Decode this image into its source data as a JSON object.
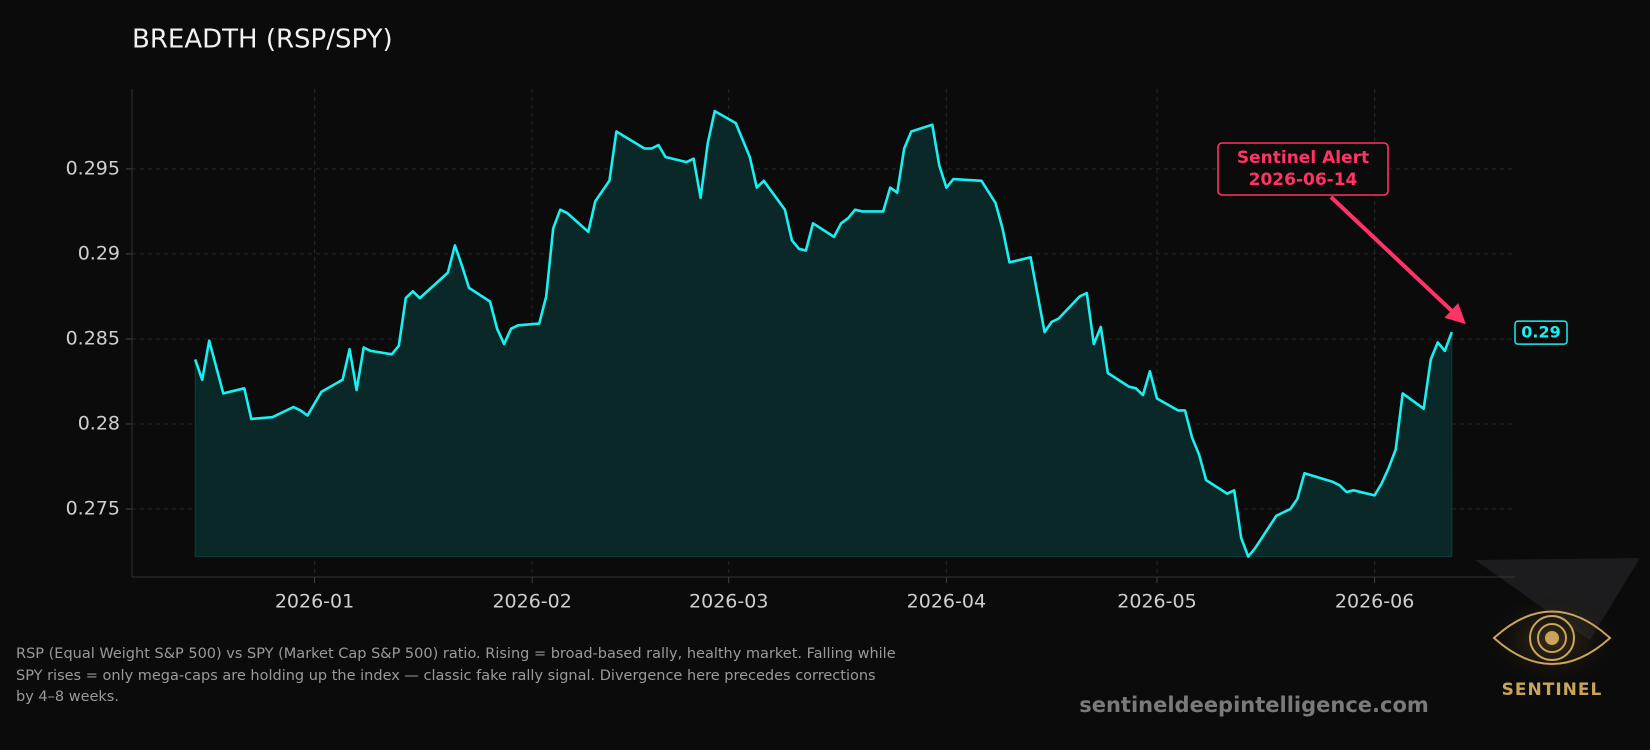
{
  "chart_data": {
    "type": "area-line",
    "title": "BREADTH (RSP/SPY)",
    "x": [
      "2025-12-15",
      "2025-12-16",
      "2025-12-17",
      "2025-12-19",
      "2025-12-22",
      "2025-12-23",
      "2025-12-26",
      "2025-12-29",
      "2025-12-30",
      "2025-12-31",
      "2026-01-02",
      "2026-01-05",
      "2026-01-06",
      "2026-01-07",
      "2026-01-08",
      "2026-01-09",
      "2026-01-12",
      "2026-01-13",
      "2026-01-14",
      "2026-01-15",
      "2026-01-16",
      "2026-01-20",
      "2026-01-21",
      "2026-01-22",
      "2026-01-23",
      "2026-01-26",
      "2026-01-27",
      "2026-01-28",
      "2026-01-29",
      "2026-01-30",
      "2026-02-02",
      "2026-02-03",
      "2026-02-04",
      "2026-02-05",
      "2026-02-06",
      "2026-02-09",
      "2026-02-10",
      "2026-02-12",
      "2026-02-13",
      "2026-02-17",
      "2026-02-18",
      "2026-02-19",
      "2026-02-20",
      "2026-02-23",
      "2026-02-24",
      "2026-02-25",
      "2026-02-26",
      "2026-02-27",
      "2026-03-02",
      "2026-03-04",
      "2026-03-05",
      "2026-03-06",
      "2026-03-09",
      "2026-03-10",
      "2026-03-11",
      "2026-03-12",
      "2026-03-13",
      "2026-03-16",
      "2026-03-17",
      "2026-03-18",
      "2026-03-19",
      "2026-03-20",
      "2026-03-23",
      "2026-03-24",
      "2026-03-25",
      "2026-03-26",
      "2026-03-27",
      "2026-03-30",
      "2026-03-31",
      "2026-04-01",
      "2026-04-02",
      "2026-04-06",
      "2026-04-08",
      "2026-04-09",
      "2026-04-10",
      "2026-04-13",
      "2026-04-14",
      "2026-04-15",
      "2026-04-16",
      "2026-04-17",
      "2026-04-20",
      "2026-04-21",
      "2026-04-22",
      "2026-04-23",
      "2026-04-24",
      "2026-04-27",
      "2026-04-28",
      "2026-04-29",
      "2026-04-30",
      "2026-05-01",
      "2026-05-04",
      "2026-05-05",
      "2026-05-06",
      "2026-05-07",
      "2026-05-08",
      "2026-05-11",
      "2026-05-12",
      "2026-05-13",
      "2026-05-14",
      "2026-05-15",
      "2026-05-18",
      "2026-05-20",
      "2026-05-21",
      "2026-05-22",
      "2026-05-26",
      "2026-05-27",
      "2026-05-28",
      "2026-05-29",
      "2026-06-01",
      "2026-06-02",
      "2026-06-03",
      "2026-06-04",
      "2026-06-05",
      "2026-06-08",
      "2026-06-09",
      "2026-06-10",
      "2026-06-11",
      "2026-06-12"
    ],
    "series": [
      {
        "color": "#19f0f0",
        "fill": "#0a2828",
        "values": [
          0.2838,
          0.2826,
          0.2849,
          0.2818,
          0.2821,
          0.2803,
          0.2804,
          0.281,
          0.2808,
          0.2805,
          0.2819,
          0.2826,
          0.2844,
          0.282,
          0.2845,
          0.2843,
          0.2841,
          0.2846,
          0.2874,
          0.2878,
          0.2874,
          0.2889,
          0.2905,
          0.2893,
          0.288,
          0.2872,
          0.2856,
          0.2847,
          0.2856,
          0.2858,
          0.2859,
          0.2875,
          0.2915,
          0.2926,
          0.2924,
          0.2913,
          0.2931,
          0.2943,
          0.2972,
          0.2962,
          0.2962,
          0.2964,
          0.2957,
          0.2954,
          0.2956,
          0.2933,
          0.2965,
          0.2984,
          0.2977,
          0.2957,
          0.2939,
          0.2943,
          0.2926,
          0.2908,
          0.2903,
          0.2902,
          0.2918,
          0.291,
          0.2918,
          0.2921,
          0.2926,
          0.2925,
          0.2925,
          0.2939,
          0.2936,
          0.2962,
          0.2972,
          0.2976,
          0.2952,
          0.2939,
          0.2944,
          0.2943,
          0.293,
          0.2915,
          0.2895,
          0.2898,
          0.2876,
          0.2854,
          0.286,
          0.2862,
          0.2875,
          0.2877,
          0.2847,
          0.2857,
          0.283,
          0.2822,
          0.2821,
          0.2817,
          0.2831,
          0.2815,
          0.2808,
          0.2808,
          0.2792,
          0.2782,
          0.2767,
          0.2759,
          0.2761,
          0.2733,
          0.2722,
          0.2727,
          0.2746,
          0.275,
          0.2756,
          0.2771,
          0.2766,
          0.2764,
          0.276,
          0.2761,
          0.2758,
          0.2765,
          0.2774,
          0.2785,
          0.2818,
          0.2809,
          0.2838,
          0.2848,
          0.2843,
          0.2854
        ],
        "last_value_label": "0.29"
      }
    ],
    "xlim": [
      "2025-12-06",
      "2026-06-21"
    ],
    "xticks": [
      "2026-01",
      "2026-02",
      "2026-03",
      "2026-04",
      "2026-05",
      "2026-06"
    ],
    "ylim": [
      0.271,
      0.2997
    ],
    "yticks": [
      0.275,
      0.28,
      0.285,
      0.29,
      0.295
    ],
    "grid": true,
    "annotation": {
      "text": "Sentinel Alert",
      "date": "2026-06-14",
      "color": "#ff3366"
    },
    "caption": "RSP (Equal Weight S&P 500) vs SPY (Market Cap S&P 500) ratio. Rising = broad-based rally, healthy market. Falling while SPY rises = only mega-caps are holding up the index — classic fake rally signal. Divergence here precedes corrections by 4–8 weeks.",
    "watermark": "sentineldeepintelligence.com",
    "logo_text": "SENTINEL"
  }
}
